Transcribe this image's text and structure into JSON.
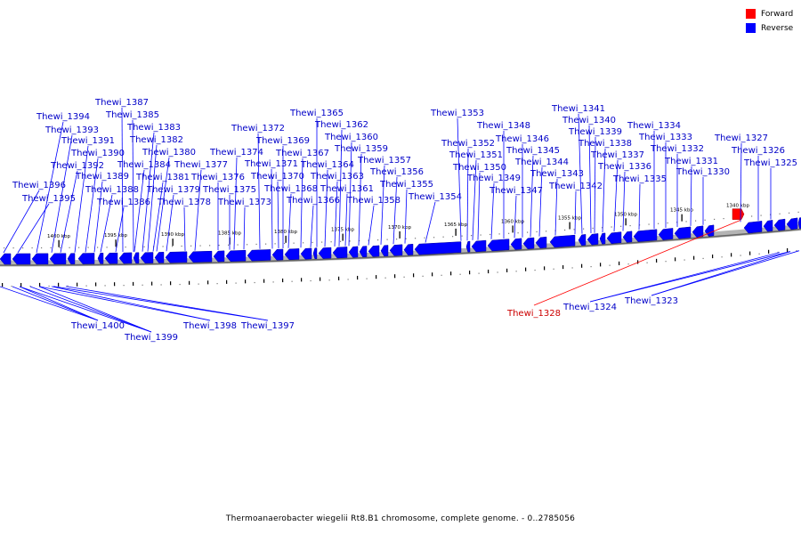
{
  "legend": {
    "forward_label": "Forward",
    "reverse_label": "Reverse",
    "forward_color": "#ff0000",
    "reverse_color": "#0000ff"
  },
  "caption": "Thermoanaerobacter wiegelii Rt8.B1 chromosome, complete genome. - 0..2785056",
  "scale_labels": [
    "1400 kbp",
    "1395 kbp",
    "1390 kbp",
    "1385 kbp",
    "1380 kbp",
    "1375 kbp",
    "1370 kbp",
    "1365 kbp",
    "1360 kbp",
    "1355 kbp",
    "1350 kbp",
    "1345 kbp",
    "1340 kbp"
  ],
  "forward_genes": [
    "Thewi_1328"
  ],
  "reverse_genes": [
    "Thewi_1387",
    "Thewi_1394",
    "Thewi_1385",
    "Thewi_1393",
    "Thewi_1383",
    "Thewi_1391",
    "Thewi_1382",
    "Thewi_1390",
    "Thewi_1380",
    "Thewi_1392",
    "Thewi_1384",
    "Thewi_1377",
    "Thewi_1389",
    "Thewi_1381",
    "Thewi_1376",
    "Thewi_1396",
    "Thewi_1388",
    "Thewi_1379",
    "Thewi_1375",
    "Thewi_1395",
    "Thewi_1386",
    "Thewi_1378",
    "Thewi_1373",
    "Thewi_1374",
    "Thewi_1372",
    "Thewi_1369",
    "Thewi_1371",
    "Thewi_1370",
    "Thewi_1368",
    "Thewi_1366",
    "Thewi_1365",
    "Thewi_1362",
    "Thewi_1367",
    "Thewi_1360",
    "Thewi_1364",
    "Thewi_1359",
    "Thewi_1363",
    "Thewi_1357",
    "Thewi_1361",
    "Thewi_1356",
    "Thewi_1355",
    "Thewi_1358",
    "Thewi_1354",
    "Thewi_1353",
    "Thewi_1352",
    "Thewi_1351",
    "Thewi_1350",
    "Thewi_1349",
    "Thewi_1348",
    "Thewi_1346",
    "Thewi_1345",
    "Thewi_1344",
    "Thewi_1343",
    "Thewi_1347",
    "Thewi_1342",
    "Thewi_1341",
    "Thewi_1340",
    "Thewi_1339",
    "Thewi_1338",
    "Thewi_1337",
    "Thewi_1336",
    "Thewi_1335",
    "Thewi_1334",
    "Thewi_1333",
    "Thewi_1332",
    "Thewi_1331",
    "Thewi_1330",
    "Thewi_1327",
    "Thewi_1326",
    "Thewi_1325",
    "Thewi_1400",
    "Thewi_1399",
    "Thewi_1398",
    "Thewi_1397",
    "Thewi_1324",
    "Thewi_1323"
  ]
}
